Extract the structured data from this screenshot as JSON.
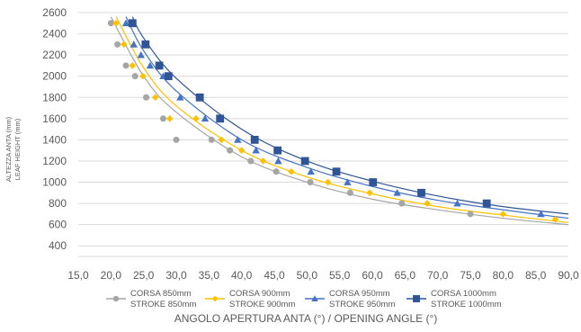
{
  "chart_data": {
    "type": "scatter",
    "title": "",
    "xlabel": "ANGOLO APERTURA ANTA (°) / OPENING ANGLE (°)",
    "ylabel_lines": [
      "ALTEZZA ANTA (mm)",
      "LEAF HEIGHT (mm)"
    ],
    "xlim": [
      15,
      90
    ],
    "ylim": [
      300,
      2600
    ],
    "xticks": [
      "15,0",
      "20,0",
      "25,0",
      "30,0",
      "35,0",
      "40,0",
      "45,0",
      "50,0",
      "55,0",
      "60,0",
      "65,0",
      "70,0",
      "75,0",
      "80,0",
      "85,0",
      "90,0"
    ],
    "yticks": [
      "400",
      "600",
      "800",
      "1000",
      "1200",
      "1400",
      "1600",
      "1800",
      "2000",
      "2200",
      "2400",
      "2600"
    ],
    "grid": "horizontal",
    "legend_position": "bottom",
    "series": [
      {
        "name_lines": [
          "CORSA 850mm",
          "STROKE 850mm"
        ],
        "color": "#a5a5a5",
        "marker": "circle",
        "points": [
          [
            20.0,
            2500
          ],
          [
            21.0,
            2300
          ],
          [
            22.3,
            2100
          ],
          [
            23.7,
            2000
          ],
          [
            25.4,
            1800
          ],
          [
            28.0,
            1600
          ],
          [
            30.0,
            1400
          ],
          [
            35.4,
            1400
          ],
          [
            38.2,
            1300
          ],
          [
            41.4,
            1200
          ],
          [
            45.3,
            1100
          ],
          [
            50.5,
            1000
          ],
          [
            56.6,
            900
          ],
          [
            64.5,
            800
          ],
          [
            75.0,
            700
          ]
        ],
        "fit": [
          [
            20.0,
            2560
          ],
          [
            25.0,
            2000
          ],
          [
            30.0,
            1660
          ],
          [
            40.0,
            1240
          ],
          [
            50.0,
            1000
          ],
          [
            60.0,
            840
          ],
          [
            70.0,
            740
          ],
          [
            80.0,
            660
          ],
          [
            90.0,
            600
          ]
        ]
      },
      {
        "name_lines": [
          "CORSA 900mm",
          "STROKE 900mm"
        ],
        "color": "#ffc000",
        "marker": "diamond",
        "points": [
          [
            20.8,
            2500
          ],
          [
            22.0,
            2300
          ],
          [
            23.3,
            2100
          ],
          [
            24.9,
            2000
          ],
          [
            26.8,
            1800
          ],
          [
            29.0,
            1600
          ],
          [
            33.0,
            1600
          ],
          [
            36.9,
            1400
          ],
          [
            40.0,
            1300
          ],
          [
            43.3,
            1200
          ],
          [
            47.6,
            1100
          ],
          [
            53.2,
            1000
          ],
          [
            59.6,
            900
          ],
          [
            68.4,
            800
          ],
          [
            80.0,
            700
          ],
          [
            88.0,
            650
          ]
        ],
        "fit": [
          [
            20.8,
            2560
          ],
          [
            25.0,
            2080
          ],
          [
            30.0,
            1720
          ],
          [
            40.0,
            1300
          ],
          [
            50.0,
            1050
          ],
          [
            60.0,
            890
          ],
          [
            70.0,
            770
          ],
          [
            80.0,
            690
          ],
          [
            90.0,
            620
          ]
        ]
      },
      {
        "name_lines": [
          "CORSA 950mm",
          "STROKE 950mm"
        ],
        "color": "#4472c4",
        "marker": "triangle",
        "points": [
          [
            22.3,
            2500
          ],
          [
            23.5,
            2300
          ],
          [
            24.6,
            2200
          ],
          [
            26.0,
            2100
          ],
          [
            28.0,
            2000
          ],
          [
            30.6,
            1800
          ],
          [
            34.4,
            1600
          ],
          [
            39.4,
            1400
          ],
          [
            42.2,
            1300
          ],
          [
            45.6,
            1200
          ],
          [
            50.6,
            1100
          ],
          [
            56.2,
            1000
          ],
          [
            63.8,
            900
          ],
          [
            73.0,
            800
          ],
          [
            85.8,
            700
          ]
        ],
        "fit": [
          [
            22.3,
            2560
          ],
          [
            25.0,
            2240
          ],
          [
            30.0,
            1860
          ],
          [
            40.0,
            1400
          ],
          [
            50.0,
            1140
          ],
          [
            60.0,
            960
          ],
          [
            70.0,
            830
          ],
          [
            80.0,
            740
          ],
          [
            90.0,
            660
          ]
        ]
      },
      {
        "name_lines": [
          "CORSA 1000mm",
          "STROKE 1000mm"
        ],
        "color": "#2f5597",
        "marker": "square",
        "points": [
          [
            23.3,
            2500
          ],
          [
            25.3,
            2300
          ],
          [
            27.4,
            2100
          ],
          [
            28.8,
            2000
          ],
          [
            33.6,
            1800
          ],
          [
            36.7,
            1600
          ],
          [
            42.0,
            1400
          ],
          [
            45.5,
            1300
          ],
          [
            49.7,
            1200
          ],
          [
            54.5,
            1100
          ],
          [
            60.1,
            1000
          ],
          [
            67.5,
            900
          ],
          [
            77.5,
            800
          ]
        ],
        "fit": [
          [
            23.3,
            2560
          ],
          [
            25.0,
            2360
          ],
          [
            30.0,
            1980
          ],
          [
            40.0,
            1500
          ],
          [
            50.0,
            1200
          ],
          [
            60.0,
            1010
          ],
          [
            70.0,
            870
          ],
          [
            80.0,
            770
          ],
          [
            90.0,
            700
          ]
        ]
      }
    ]
  }
}
